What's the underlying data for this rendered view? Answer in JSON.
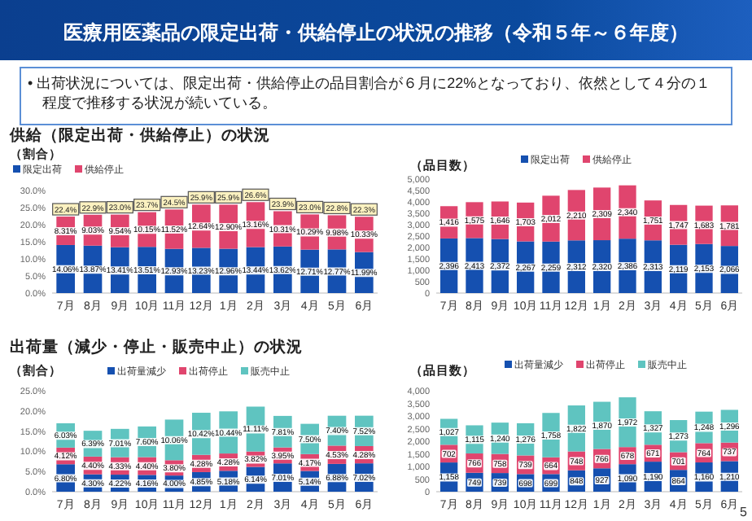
{
  "chart_data": [
    {
      "type": "bar",
      "stacked": true,
      "title": "供給（限定出荷・供給停止）の状況",
      "ylabel": "（割合）",
      "legend": "top",
      "annotations": [
        "医療用医薬品の限定出荷・供給停止の状況の推移（令和５年～６年度）",
        "• 出荷状況については、限定出荷・供給停止の品目割合が６月に22%となっており、依然として４分の１程度で推移する状況が続いている。"
      ],
      "categories": [
        "7月",
        "8月",
        "9月",
        "10月",
        "11月",
        "12月",
        "1月",
        "2月",
        "3月",
        "4月",
        "5月",
        "6月"
      ],
      "ylim": [
        0,
        30
      ],
      "yticks": [
        {
          "value": 0,
          "label": "0.0%"
        },
        {
          "value": 5,
          "label": "5.0%"
        },
        {
          "value": 10,
          "label": "10.0%"
        },
        {
          "value": 15,
          "label": "15.0%"
        },
        {
          "value": 20,
          "label": "20.0%"
        },
        {
          "value": 25,
          "label": "25.0%"
        },
        {
          "value": 30,
          "label": "30.0%"
        }
      ],
      "series": [
        {
          "name": "限定出荷",
          "color": "#1550b0",
          "values": [
            14.06,
            13.87,
            13.41,
            13.51,
            12.93,
            13.23,
            12.96,
            13.44,
            13.62,
            12.71,
            12.77,
            11.99
          ],
          "value_labels": [
            "14.06%",
            "13.87%",
            "13.41%",
            "13.51%",
            "12.93%",
            "13.23%",
            "12.96%",
            "13.44%",
            "13.62%",
            "12.71%",
            "12.77%",
            "11.99%"
          ]
        },
        {
          "name": "供給停止",
          "color": "#e0456e",
          "values": [
            8.31,
            9.03,
            9.54,
            10.15,
            11.52,
            12.64,
            12.9,
            13.16,
            10.31,
            10.29,
            9.98,
            10.33
          ],
          "value_labels": [
            "8.31%",
            "9.03%",
            "9.54%",
            "10.15%",
            "11.52%",
            "12.64%",
            "12.90%",
            "13.16%",
            "10.31%",
            "10.29%",
            "9.98%",
            "10.33%"
          ]
        }
      ],
      "totals": [
        "22.4%",
        "22.9%",
        "23.0%",
        "23.7%",
        "24.5%",
        "25.9%",
        "25.9%",
        "26.6%",
        "23.9%",
        "23.0%",
        "22.8%",
        "22.3%"
      ]
    },
    {
      "type": "bar",
      "stacked": true,
      "ylabel": "（品目数）",
      "legend": "top",
      "categories": [
        "7月",
        "8月",
        "9月",
        "10月",
        "11月",
        "12月",
        "1月",
        "2月",
        "3月",
        "4月",
        "5月",
        "6月"
      ],
      "ylim": [
        0,
        5000
      ],
      "yticks": [
        {
          "value": 0,
          "label": "0"
        },
        {
          "value": 500,
          "label": "500"
        },
        {
          "value": 1000,
          "label": "1,000"
        },
        {
          "value": 1500,
          "label": "1,500"
        },
        {
          "value": 2000,
          "label": "2,000"
        },
        {
          "value": 2500,
          "label": "2,500"
        },
        {
          "value": 3000,
          "label": "3,000"
        },
        {
          "value": 3500,
          "label": "3,500"
        },
        {
          "value": 4000,
          "label": "4,000"
        },
        {
          "value": 4500,
          "label": "4,500"
        },
        {
          "value": 5000,
          "label": "5,000"
        }
      ],
      "series": [
        {
          "name": "限定出荷",
          "color": "#1550b0",
          "values": [
            2396,
            2413,
            2372,
            2267,
            2259,
            2312,
            2320,
            2386,
            2313,
            2119,
            2153,
            2066
          ],
          "value_labels": [
            "2,396",
            "2,413",
            "2,372",
            "2,267",
            "2,259",
            "2,312",
            "2,320",
            "2,386",
            "2,313",
            "2,119",
            "2,153",
            "2,066"
          ]
        },
        {
          "name": "供給停止",
          "color": "#e0456e",
          "values": [
            1416,
            1575,
            1646,
            1703,
            2012,
            2210,
            2309,
            2340,
            1751,
            1747,
            1683,
            1781
          ],
          "value_labels": [
            "1,416",
            "1,575",
            "1,646",
            "1,703",
            "2,012",
            "2,210",
            "2,309",
            "2,340",
            "1,751",
            "1,747",
            "1,683",
            "1,781"
          ]
        }
      ]
    },
    {
      "type": "bar",
      "stacked": true,
      "title": "出荷量（減少・停止・販売中止）の状況",
      "ylabel": "（割合）",
      "legend": "top",
      "categories": [
        "7月",
        "8月",
        "9月",
        "10月",
        "11月",
        "12月",
        "1月",
        "2月",
        "3月",
        "4月",
        "5月",
        "6月"
      ],
      "ylim": [
        0,
        25
      ],
      "yticks": [
        {
          "value": 0,
          "label": "0.0%"
        },
        {
          "value": 5,
          "label": "5.0%"
        },
        {
          "value": 10,
          "label": "10.0%"
        },
        {
          "value": 15,
          "label": "15.0%"
        },
        {
          "value": 20,
          "label": "20.0%"
        },
        {
          "value": 25,
          "label": "25.0%"
        }
      ],
      "series": [
        {
          "name": "出荷量減少",
          "color": "#1550b0",
          "values": [
            6.8,
            4.3,
            4.22,
            4.16,
            4.0,
            4.85,
            5.18,
            6.14,
            7.01,
            5.14,
            6.88,
            7.02
          ],
          "value_labels": [
            "6.80%",
            "4.30%",
            "4.22%",
            "4.16%",
            "4.00%",
            "4.85%",
            "5.18%",
            "6.14%",
            "7.01%",
            "5.14%",
            "6.88%",
            "7.02%"
          ]
        },
        {
          "name": "出荷停止",
          "color": "#e0456e",
          "values": [
            4.12,
            4.4,
            4.33,
            4.4,
            3.8,
            4.28,
            4.28,
            3.82,
            3.95,
            4.17,
            4.53,
            4.28
          ],
          "value_labels": [
            "4.12%",
            "4.40%",
            "4.33%",
            "4.40%",
            "3.80%",
            "4.28%",
            "4.28%",
            "3.82%",
            "3.95%",
            "4.17%",
            "4.53%",
            "4.28%"
          ]
        },
        {
          "name": "販売中止",
          "color": "#5fc4c0",
          "values": [
            6.03,
            6.39,
            7.01,
            7.6,
            10.06,
            10.42,
            10.44,
            11.11,
            7.81,
            7.5,
            7.4,
            7.52
          ],
          "value_labels": [
            "6.03%",
            "6.39%",
            "7.01%",
            "7.60%",
            "10.06%",
            "10.42%",
            "10.44%",
            "11.11%",
            "7.81%",
            "7.50%",
            "7.40%",
            "7.52%"
          ]
        }
      ]
    },
    {
      "type": "bar",
      "stacked": true,
      "ylabel": "（品目数）",
      "legend": "top",
      "annotations": [
        "5"
      ],
      "categories": [
        "7月",
        "8月",
        "9月",
        "10月",
        "11月",
        "12月",
        "1月",
        "2月",
        "3月",
        "4月",
        "5月",
        "6月"
      ],
      "ylim": [
        0,
        4000
      ],
      "yticks": [
        {
          "value": 0,
          "label": "0"
        },
        {
          "value": 500,
          "label": "500"
        },
        {
          "value": 1000,
          "label": "1,000"
        },
        {
          "value": 1500,
          "label": "1,500"
        },
        {
          "value": 2000,
          "label": "2,000"
        },
        {
          "value": 2500,
          "label": "2,500"
        },
        {
          "value": 3000,
          "label": "3,000"
        },
        {
          "value": 3500,
          "label": "3,500"
        },
        {
          "value": 4000,
          "label": "4,000"
        }
      ],
      "series": [
        {
          "name": "出荷量減少",
          "color": "#1550b0",
          "values": [
            1158,
            749,
            739,
            698,
            699,
            848,
            927,
            1090,
            1190,
            864,
            1160,
            1210
          ],
          "value_labels": [
            "1,158",
            "749",
            "739",
            "698",
            "699",
            "848",
            "927",
            "1,090",
            "1,190",
            "864",
            "1,160",
            "1,210"
          ]
        },
        {
          "name": "出荷停止",
          "color": "#e0456e",
          "values": [
            702,
            766,
            758,
            739,
            664,
            748,
            766,
            678,
            671,
            701,
            764,
            737
          ],
          "value_labels": [
            "702",
            "766",
            "758",
            "739",
            "664",
            "748",
            "766",
            "678",
            "671",
            "701",
            "764",
            "737"
          ]
        },
        {
          "name": "販売中止",
          "color": "#5fc4c0",
          "values": [
            1027,
            1115,
            1240,
            1276,
            1758,
            1822,
            1870,
            1972,
            1327,
            1273,
            1248,
            1296
          ],
          "value_labels": [
            "1,027",
            "1,115",
            "1,240",
            "1,276",
            "1,758",
            "1,822",
            "1,870",
            "1,972",
            "1,327",
            "1,273",
            "1,248",
            "1,296"
          ]
        }
      ]
    }
  ]
}
